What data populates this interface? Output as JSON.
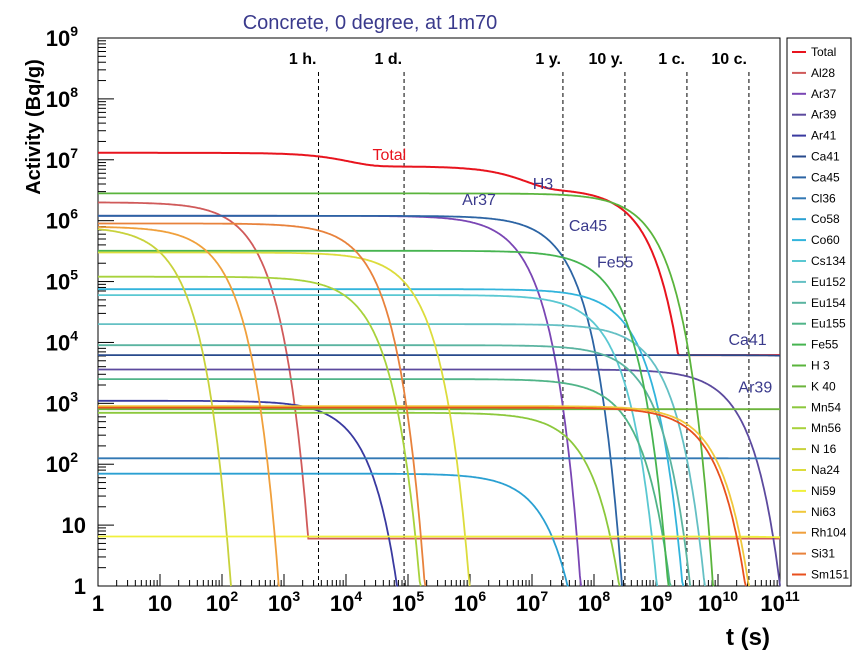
{
  "chart_data": {
    "type": "line",
    "title": "Concrete, 0 degree, at 1m70",
    "xlabel": "t (s)",
    "ylabel": "Activity (Bq/g)",
    "xscale": "log",
    "yscale": "log",
    "xlim": [
      1,
      100000000000
    ],
    "ylim": [
      1,
      1000000000
    ],
    "xticks": [
      {
        "value": 1,
        "base": "1",
        "exp": ""
      },
      {
        "value": 10,
        "base": "10",
        "exp": ""
      },
      {
        "value": 100,
        "base": "10",
        "exp": "2"
      },
      {
        "value": 1000,
        "base": "10",
        "exp": "3"
      },
      {
        "value": 10000,
        "base": "10",
        "exp": "4"
      },
      {
        "value": 100000,
        "base": "10",
        "exp": "5"
      },
      {
        "value": 1000000,
        "base": "10",
        "exp": "6"
      },
      {
        "value": 10000000,
        "base": "10",
        "exp": "7"
      },
      {
        "value": 100000000,
        "base": "10",
        "exp": "8"
      },
      {
        "value": 1000000000,
        "base": "10",
        "exp": "9"
      },
      {
        "value": 10000000000,
        "base": "10",
        "exp": "10"
      },
      {
        "value": 100000000000,
        "base": "10",
        "exp": "11"
      }
    ],
    "yticks": [
      {
        "value": 1,
        "base": "1",
        "exp": ""
      },
      {
        "value": 10,
        "base": "10",
        "exp": ""
      },
      {
        "value": 100,
        "base": "10",
        "exp": "2"
      },
      {
        "value": 1000,
        "base": "10",
        "exp": "3"
      },
      {
        "value": 10000,
        "base": "10",
        "exp": "4"
      },
      {
        "value": 100000,
        "base": "10",
        "exp": "5"
      },
      {
        "value": 1000000,
        "base": "10",
        "exp": "6"
      },
      {
        "value": 10000000,
        "base": "10",
        "exp": "7"
      },
      {
        "value": 100000000,
        "base": "10",
        "exp": "8"
      },
      {
        "value": 1000000000,
        "base": "10",
        "exp": "9"
      }
    ],
    "markers": [
      {
        "label": "1 h.",
        "x": 3600
      },
      {
        "label": "1 d.",
        "x": 86400
      },
      {
        "label": "1 y.",
        "x": 31536000
      },
      {
        "label": "10 y.",
        "x": 315360000
      },
      {
        "label": "1 c.",
        "x": 3153600000
      },
      {
        "label": "10 c.",
        "x": 31536000000
      }
    ],
    "legend_position": "right",
    "series": [
      {
        "name": "Total",
        "color": "#e8141e",
        "a0": 13000000,
        "hl": null,
        "parts": [
          [
            6600,
            0.4,
            1.0
          ],
          [
            4000000,
            0.34,
            1.0
          ],
          [
            250000000,
            0.26,
            1.0
          ]
        ],
        "floor": 6200
      },
      {
        "name": "Al28",
        "color": "#d05a5a",
        "a0": 2000000,
        "hl": 134,
        "floor": 6
      },
      {
        "name": "Ar37",
        "color": "#7a46b4",
        "a0": 1200000,
        "hl": 3020000
      },
      {
        "name": "Ar39",
        "color": "#5c4a9e",
        "a0": 3600,
        "hl": 8470000000
      },
      {
        "name": "Ar41",
        "color": "#3a3aa0",
        "a0": 1100,
        "hl": 6580
      },
      {
        "name": "Ca41",
        "color": "#284a8c",
        "a0": 6200,
        "hl": 3200000000000.0
      },
      {
        "name": "Ca45",
        "color": "#2c64a4",
        "a0": 1200000,
        "hl": 14000000
      },
      {
        "name": "Cl36",
        "color": "#3278b4",
        "a0": 125,
        "hl": 9500000000000.0
      },
      {
        "name": "Co58",
        "color": "#2aa0d2",
        "a0": 70,
        "hl": 6120000
      },
      {
        "name": "Co60",
        "color": "#32b4dc",
        "a0": 75000,
        "hl": 166000000
      },
      {
        "name": "Cs134",
        "color": "#5ac8d2",
        "a0": 60000,
        "hl": 65000000
      },
      {
        "name": "Eu152",
        "color": "#64c0c4",
        "a0": 20000,
        "hl": 427000000
      },
      {
        "name": "Eu154",
        "color": "#5ab4a0",
        "a0": 9000,
        "hl": 271000000
      },
      {
        "name": "Eu155",
        "color": "#50b488",
        "a0": 2500,
        "hl": 150000000
      },
      {
        "name": "Fe55",
        "color": "#46b450",
        "a0": 320000,
        "hl": 86000000
      },
      {
        "name": "H 3",
        "color": "#5ab43c",
        "a0": 2800000,
        "hl": 388000000
      },
      {
        "name": "K 40",
        "color": "#6cb43c",
        "a0": 800,
        "hl": 3.9e+16
      },
      {
        "name": "Mn54",
        "color": "#8cc83c",
        "a0": 700,
        "hl": 27000000
      },
      {
        "name": "Mn56",
        "color": "#a8d23c",
        "a0": 120000,
        "hl": 9280
      },
      {
        "name": "N 16",
        "color": "#c8d23c",
        "a0": 800000,
        "hl": 7.1
      },
      {
        "name": "Na24",
        "color": "#dcdc3c",
        "a0": 300000,
        "hl": 53900
      },
      {
        "name": "Ni59",
        "color": "#f0f03c",
        "a0": 6.5,
        "hl": 2400000000000.0
      },
      {
        "name": "Ni63",
        "color": "#f0c83c",
        "a0": 900,
        "hl": 3190000000
      },
      {
        "name": "Rh104",
        "color": "#f0a03c",
        "a0": 800000,
        "hl": 42
      },
      {
        "name": "Si31",
        "color": "#e8823c",
        "a0": 900000,
        "hl": 9440
      },
      {
        "name": "Sm151",
        "color": "#e8501e",
        "a0": 850,
        "hl": 2840000000
      }
    ],
    "labels": [
      {
        "text": "Total",
        "x": 50000,
        "y": 10000000,
        "color": "#e8141e"
      },
      {
        "text": "H3",
        "x": 15000000,
        "y": 3300000,
        "color": "#3a3a8c"
      },
      {
        "text": "Ar37",
        "x": 1400000,
        "y": 1800000,
        "color": "#3a3a8c"
      },
      {
        "text": "Ca45",
        "x": 80000000,
        "y": 680000,
        "color": "#3a3a8c"
      },
      {
        "text": "Fe55",
        "x": 220000000,
        "y": 170000,
        "color": "#3a3a8c"
      },
      {
        "text": "Ca41",
        "x": 30000000000.0,
        "y": 9000,
        "color": "#3a3a8c"
      },
      {
        "text": "Ar39",
        "x": 40000000000.0,
        "y": 1500,
        "color": "#3a3a8c"
      }
    ]
  }
}
